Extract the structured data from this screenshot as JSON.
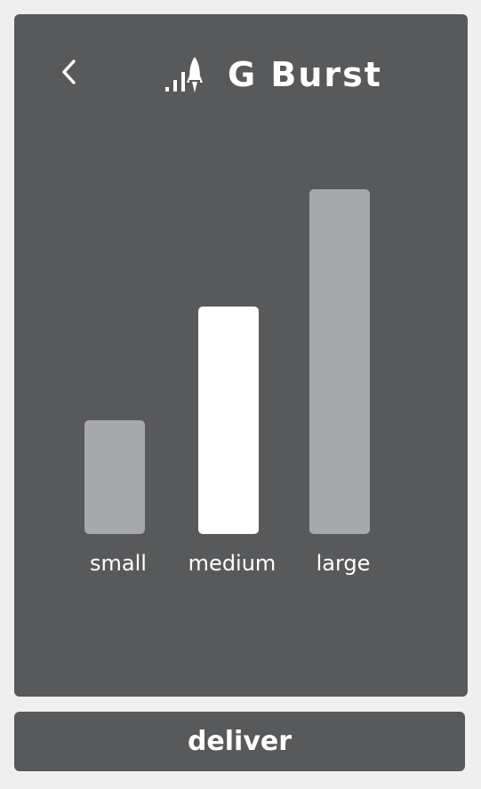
{
  "header": {
    "title": "G Burst",
    "back_icon": "chevron-left-icon",
    "title_icon": "signal-rocket-icon"
  },
  "size_picker": {
    "selected": "medium",
    "options": [
      {
        "label": "small",
        "level": 0.33
      },
      {
        "label": "medium",
        "level": 0.66
      },
      {
        "label": "large",
        "level": 1.0
      }
    ]
  },
  "footer": {
    "action_label": "deliver"
  },
  "colors": {
    "background": "#efefef",
    "panel": "#58595b",
    "bar_unselected": "#a7a8ab",
    "bar_selected": "#ffffff",
    "text": "#ffffff"
  }
}
